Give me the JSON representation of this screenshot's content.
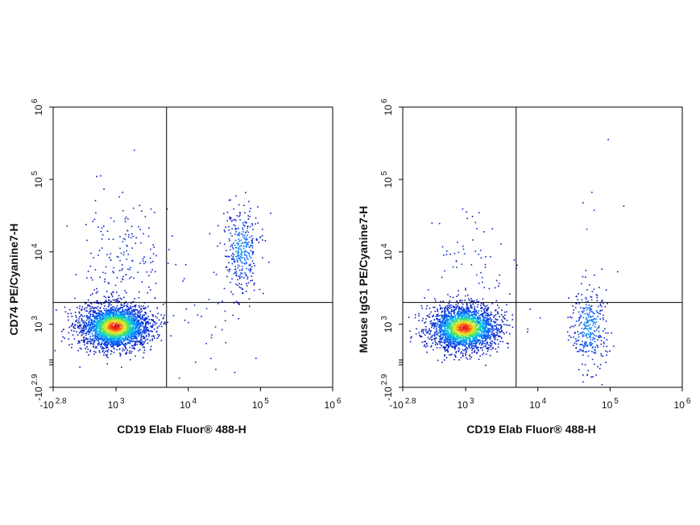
{
  "chart_data": [
    {
      "type": "scatter",
      "plot_style": "flow-cytometry-density-dot-plot",
      "xlabel": "CD19 Elab Fluor® 488-H",
      "ylabel": "CD74 PE/Cyanine7-H",
      "xscale": "biexponential",
      "yscale": "biexponential",
      "xlim": [
        -631,
        1000000
      ],
      "ylim": [
        -794,
        1000000
      ],
      "x_ticks": [
        {
          "base": "-10",
          "exp": "2.8",
          "value": -631
        },
        {
          "base": "10",
          "exp": "3",
          "value": 1000
        },
        {
          "base": "10",
          "exp": "4",
          "value": 10000
        },
        {
          "base": "10",
          "exp": "5",
          "value": 100000
        },
        {
          "base": "10",
          "exp": "6",
          "value": 1000000
        }
      ],
      "y_ticks": [
        {
          "base": "-10",
          "exp": "2.9",
          "value": -794
        },
        {
          "base": "10",
          "exp": "3",
          "value": 1000
        },
        {
          "base": "10",
          "exp": "4",
          "value": 10000
        },
        {
          "base": "10",
          "exp": "5",
          "value": 100000
        },
        {
          "base": "10",
          "exp": "6",
          "value": 1000000
        }
      ],
      "quadrant_gate": {
        "x": 5000,
        "y": 2000
      },
      "populations": [
        {
          "x": 700,
          "y": 650,
          "count": 2600,
          "density": "high"
        },
        {
          "x": 1200,
          "y": 9000,
          "count": 170,
          "density": "low"
        },
        {
          "x": 55000,
          "y": 11000,
          "count": 330,
          "density": "medium"
        },
        {
          "x": 20000,
          "y": 1500,
          "count": 35,
          "density": "low"
        }
      ]
    },
    {
      "type": "scatter",
      "plot_style": "flow-cytometry-density-dot-plot",
      "xlabel": "CD19 Elab Fluor® 488-H",
      "ylabel": "Mouse IgG1 PE/Cyanine7-H",
      "xscale": "biexponential",
      "yscale": "biexponential",
      "xlim": [
        -631,
        1000000
      ],
      "ylim": [
        -794,
        1000000
      ],
      "x_ticks": [
        {
          "base": "-10",
          "exp": "2.8",
          "value": -631
        },
        {
          "base": "10",
          "exp": "3",
          "value": 1000
        },
        {
          "base": "10",
          "exp": "4",
          "value": 10000
        },
        {
          "base": "10",
          "exp": "5",
          "value": 100000
        },
        {
          "base": "10",
          "exp": "6",
          "value": 1000000
        }
      ],
      "y_ticks": [
        {
          "base": "-10",
          "exp": "2.9",
          "value": -794
        },
        {
          "base": "10",
          "exp": "3",
          "value": 1000
        },
        {
          "base": "10",
          "exp": "4",
          "value": 10000
        },
        {
          "base": "10",
          "exp": "5",
          "value": 100000
        },
        {
          "base": "10",
          "exp": "6",
          "value": 1000000
        }
      ],
      "quadrant_gate": {
        "x": 5000,
        "y": 2000
      },
      "populations": [
        {
          "x": 650,
          "y": 500,
          "count": 2300,
          "density": "high"
        },
        {
          "x": 1000,
          "y": 6000,
          "count": 70,
          "density": "low"
        },
        {
          "x": 50000,
          "y": 550,
          "count": 320,
          "density": "medium"
        },
        {
          "x": 55000,
          "y": 30000,
          "count": 8,
          "density": "low"
        }
      ]
    }
  ]
}
